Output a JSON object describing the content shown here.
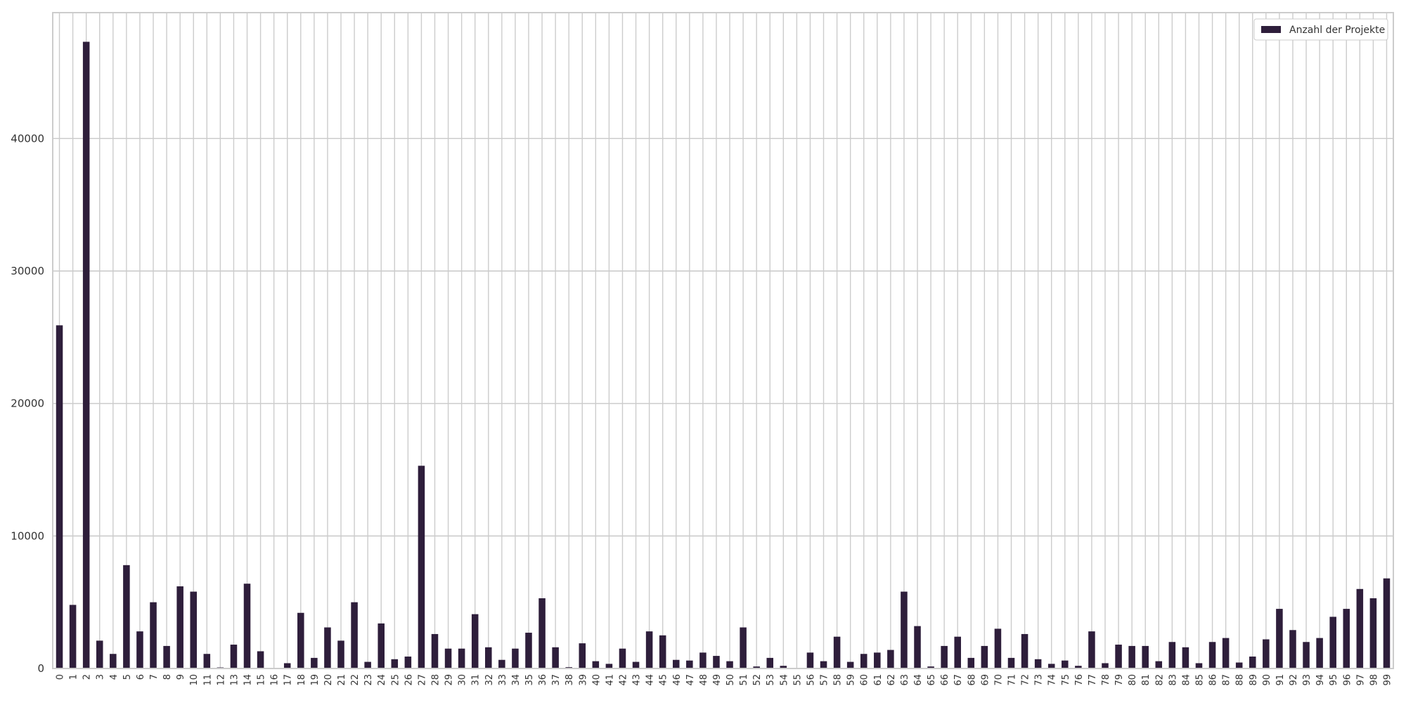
{
  "chart_data": {
    "type": "bar",
    "categories": [
      "0",
      "1",
      "2",
      "3",
      "4",
      "5",
      "6",
      "7",
      "8",
      "9",
      "10",
      "11",
      "12",
      "13",
      "14",
      "15",
      "16",
      "17",
      "18",
      "19",
      "20",
      "21",
      "22",
      "23",
      "24",
      "25",
      "26",
      "27",
      "28",
      "29",
      "30",
      "31",
      "32",
      "33",
      "34",
      "35",
      "36",
      "37",
      "38",
      "39",
      "40",
      "41",
      "42",
      "43",
      "44",
      "45",
      "46",
      "47",
      "48",
      "49",
      "50",
      "51",
      "52",
      "53",
      "54",
      "55",
      "56",
      "57",
      "58",
      "59",
      "60",
      "61",
      "62",
      "63",
      "64",
      "65",
      "66",
      "67",
      "68",
      "69",
      "70",
      "71",
      "72",
      "73",
      "74",
      "75",
      "76",
      "77",
      "78",
      "79",
      "80",
      "81",
      "82",
      "83",
      "84",
      "85",
      "86",
      "87",
      "88",
      "89",
      "90",
      "91",
      "92",
      "93",
      "94",
      "95",
      "96",
      "97",
      "98",
      "99"
    ],
    "series": [
      {
        "name": "Anzahl der Projekte",
        "values": [
          25900,
          4800,
          47300,
          2100,
          1100,
          7800,
          2800,
          5000,
          1700,
          6200,
          5800,
          1100,
          80,
          1800,
          6400,
          1300,
          30,
          400,
          4200,
          800,
          3100,
          2100,
          5000,
          500,
          3400,
          700,
          900,
          15300,
          2600,
          1500,
          1500,
          4100,
          1600,
          650,
          1500,
          2700,
          5300,
          1600,
          100,
          1900,
          550,
          350,
          1500,
          500,
          2800,
          2500,
          650,
          600,
          1200,
          950,
          550,
          3100,
          150,
          800,
          200,
          40,
          1200,
          550,
          2400,
          500,
          1100,
          1200,
          1400,
          5800,
          3200,
          150,
          1700,
          2400,
          800,
          1700,
          3000,
          800,
          2600,
          700,
          350,
          600,
          200,
          2800,
          400,
          1800,
          1700,
          1700,
          550,
          2000,
          1600,
          400,
          2000,
          2300,
          450,
          900,
          2200,
          4500,
          2900,
          2000,
          2300,
          3900,
          4500,
          6000,
          5300,
          6800
        ],
        "color": "#2e1e3b"
      }
    ],
    "ylim": [
      0,
      49500
    ],
    "yticks": [
      0,
      10000,
      20000,
      30000,
      40000
    ],
    "ytick_labels": [
      "0",
      "10000",
      "20000",
      "30000",
      "40000"
    ],
    "grid": true,
    "legend_position": "top-right",
    "title": "",
    "xlabel": "",
    "ylabel": "",
    "colors": {
      "background": "#ffffff",
      "grid": "#cccccc",
      "axes_edge": "#cccccc",
      "text": "#333333",
      "bar": "#2e1e3b"
    }
  }
}
